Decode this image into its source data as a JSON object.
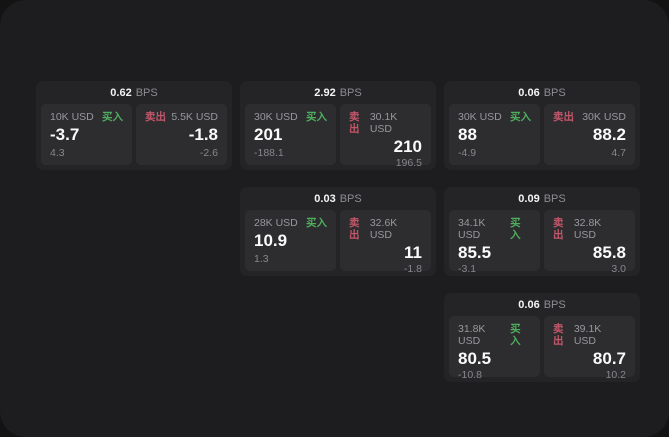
{
  "shared": {
    "bps_suffix": "BPS",
    "buy_label": "买入",
    "sell_label": "卖出",
    "currency_unit": "USD",
    "colors": {
      "buy_accent": "#4fae5e",
      "sell_accent": "#c4566b",
      "surface": "#1d1d1f",
      "card": "#242426",
      "panel": "#2d2d2f"
    }
  },
  "cards": [
    {
      "bps": "0.62",
      "row": 1,
      "col": 1,
      "buy": {
        "size": "10K USD",
        "price": "-3.7",
        "delta": "4.3"
      },
      "sell": {
        "size": "5.5K USD",
        "price": "-1.8",
        "delta": "-2.6"
      }
    },
    {
      "bps": "2.92",
      "row": 1,
      "col": 2,
      "buy": {
        "size": "30K USD",
        "price": "201",
        "delta": "-188.1"
      },
      "sell": {
        "size": "30.1K USD",
        "price": "210",
        "delta": "196.5"
      }
    },
    {
      "bps": "0.06",
      "row": 1,
      "col": 3,
      "buy": {
        "size": "30K USD",
        "price": "88",
        "delta": "-4.9"
      },
      "sell": {
        "size": "30K USD",
        "price": "88.2",
        "delta": "4.7"
      }
    },
    {
      "bps": "0.03",
      "row": 2,
      "col": 2,
      "buy": {
        "size": "28K USD",
        "price": "10.9",
        "delta": "1.3"
      },
      "sell": {
        "size": "32.6K USD",
        "price": "11",
        "delta": "-1.8"
      }
    },
    {
      "bps": "0.09",
      "row": 2,
      "col": 3,
      "buy": {
        "size": "34.1K USD",
        "price": "85.5",
        "delta": "-3.1"
      },
      "sell": {
        "size": "32.8K USD",
        "price": "85.8",
        "delta": "3.0"
      }
    },
    {
      "bps": "0.06",
      "row": 3,
      "col": 3,
      "buy": {
        "size": "31.8K USD",
        "price": "80.5",
        "delta": "-10.8"
      },
      "sell": {
        "size": "39.1K USD",
        "price": "80.7",
        "delta": "10.2"
      }
    }
  ]
}
